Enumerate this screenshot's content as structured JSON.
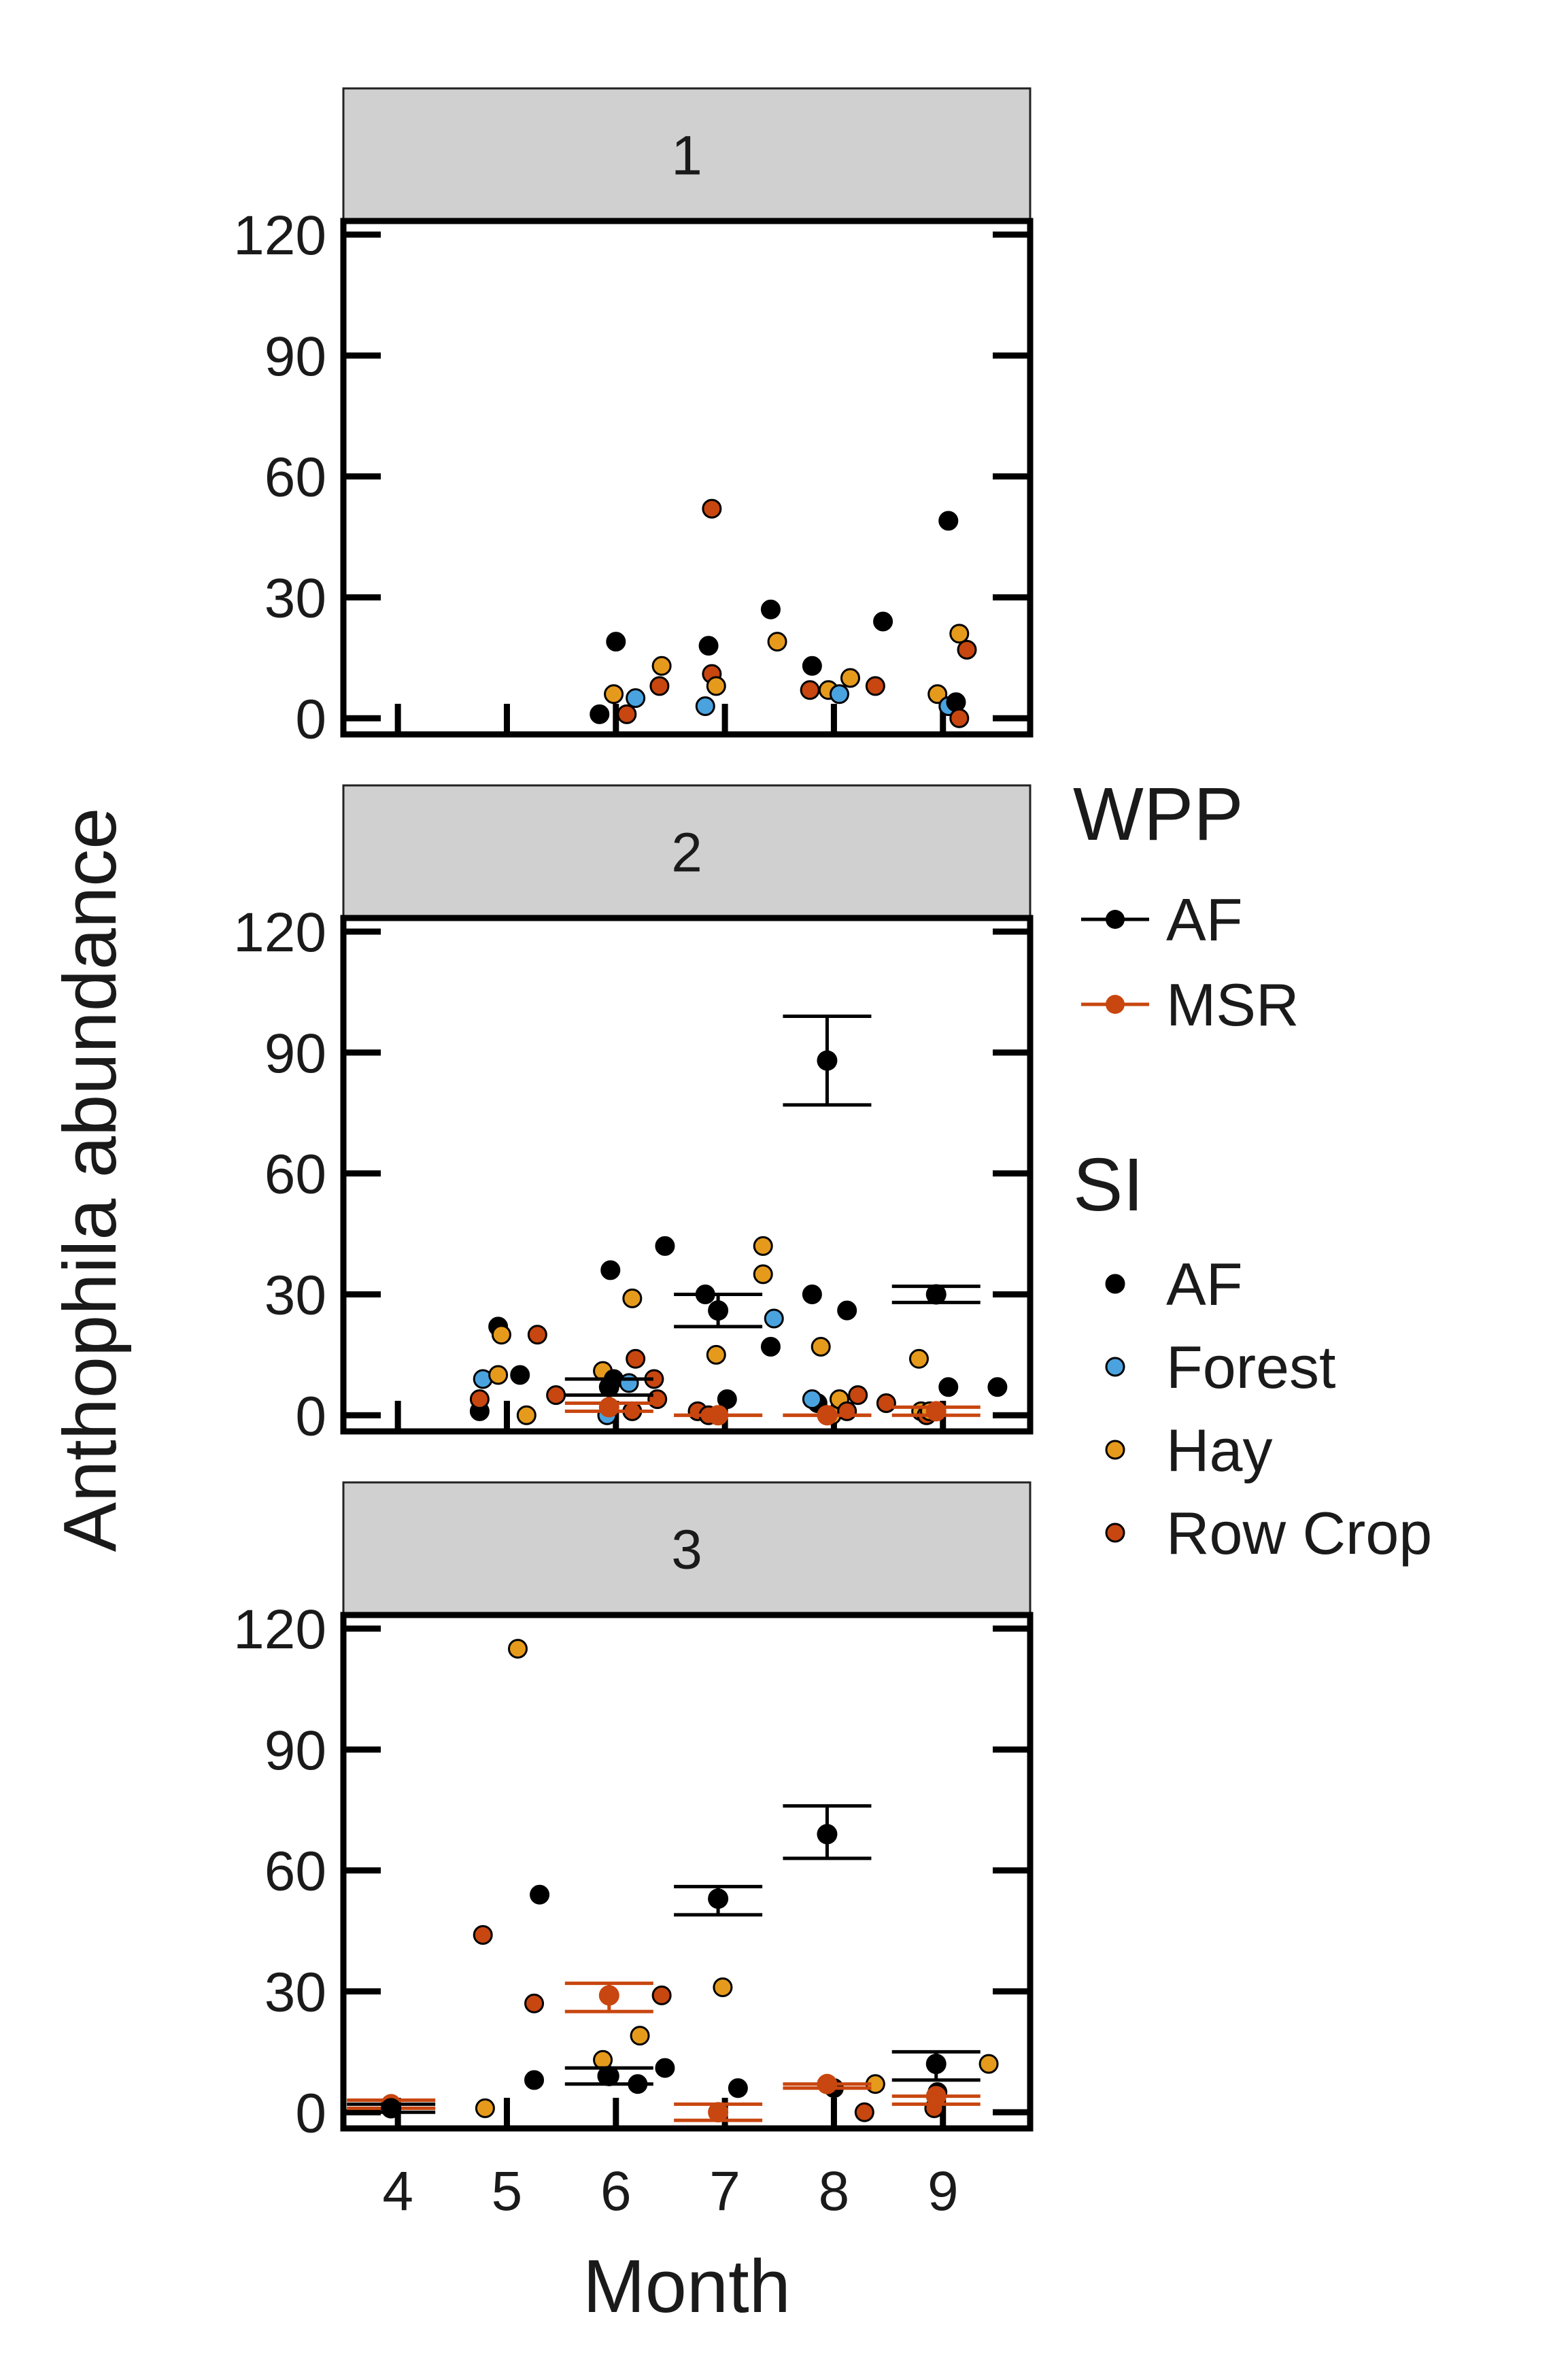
{
  "chart_data": {
    "type": "scatter",
    "xlabel": "Month",
    "ylabel": "Anthophila abundance",
    "x_ticks": [
      4,
      5,
      6,
      7,
      8,
      9
    ],
    "y_ticks": [
      0,
      30,
      60,
      90,
      120
    ],
    "ylim": [
      -4,
      120
    ],
    "facets": [
      "1",
      "2",
      "3"
    ],
    "legend": {
      "wpp_title": "WPP",
      "wpp": [
        {
          "label": "AF",
          "color": "#000000"
        },
        {
          "label": "MSR",
          "color": "#c8460f"
        }
      ],
      "si_title": "SI",
      "si": [
        {
          "label": "AF",
          "color": "#000000"
        },
        {
          "label": "Forest",
          "color": "#4aa3df"
        },
        {
          "label": "Hay",
          "color": "#e69a1c"
        },
        {
          "label": "Row Crop",
          "color": "#c8460f"
        }
      ],
      "placement": "right"
    },
    "si_colors": {
      "AF": "#000000",
      "Forest": "#4aa3df",
      "Hay": "#e69a1c",
      "Row Crop": "#c8460f"
    },
    "wpp_colors": {
      "AF": "#000000",
      "MSR": "#c8460f"
    },
    "panels": [
      {
        "strip": "1",
        "points": [
          {
            "month": 5.85,
            "y": 1,
            "si": "AF"
          },
          {
            "month": 6.0,
            "y": 19,
            "si": "AF"
          },
          {
            "month": 5.98,
            "y": 6,
            "si": "Hay"
          },
          {
            "month": 6.18,
            "y": 5,
            "si": "Forest"
          },
          {
            "month": 6.1,
            "y": 1,
            "si": "Row Crop"
          },
          {
            "month": 6.42,
            "y": 13,
            "si": "Hay"
          },
          {
            "month": 6.4,
            "y": 8,
            "si": "Row Crop"
          },
          {
            "month": 6.88,
            "y": 52,
            "si": "Row Crop"
          },
          {
            "month": 6.85,
            "y": 18,
            "si": "AF"
          },
          {
            "month": 6.88,
            "y": 11,
            "si": "Row Crop"
          },
          {
            "month": 6.92,
            "y": 8,
            "si": "Hay"
          },
          {
            "month": 6.82,
            "y": 3,
            "si": "Forest"
          },
          {
            "month": 7.42,
            "y": 27,
            "si": "AF"
          },
          {
            "month": 7.48,
            "y": 19,
            "si": "Hay"
          },
          {
            "month": 7.8,
            "y": 13,
            "si": "AF"
          },
          {
            "month": 7.78,
            "y": 7,
            "si": "Row Crop"
          },
          {
            "month": 7.95,
            "y": 7,
            "si": "Hay"
          },
          {
            "month": 8.05,
            "y": 6,
            "si": "Forest"
          },
          {
            "month": 8.15,
            "y": 10,
            "si": "Hay"
          },
          {
            "month": 8.38,
            "y": 8,
            "si": "Row Crop"
          },
          {
            "month": 8.45,
            "y": 24,
            "si": "AF"
          },
          {
            "month": 8.95,
            "y": 6,
            "si": "Hay"
          },
          {
            "month": 9.05,
            "y": 49,
            "si": "AF"
          },
          {
            "month": 9.05,
            "y": 3,
            "si": "Forest"
          },
          {
            "month": 9.12,
            "y": 4,
            "si": "AF"
          },
          {
            "month": 9.15,
            "y": 21,
            "si": "Hay"
          },
          {
            "month": 9.22,
            "y": 17,
            "si": "Row Crop"
          },
          {
            "month": 9.15,
            "y": 0,
            "si": "Row Crop"
          }
        ],
        "means": []
      },
      {
        "strip": "2",
        "points": [
          {
            "month": 4.75,
            "y": 1,
            "si": "AF"
          },
          {
            "month": 4.75,
            "y": 4,
            "si": "Row Crop"
          },
          {
            "month": 4.78,
            "y": 9,
            "si": "Forest"
          },
          {
            "month": 4.92,
            "y": 22,
            "si": "AF"
          },
          {
            "month": 4.95,
            "y": 20,
            "si": "Hay"
          },
          {
            "month": 4.92,
            "y": 10,
            "si": "Hay"
          },
          {
            "month": 5.12,
            "y": 10,
            "si": "AF"
          },
          {
            "month": 5.18,
            "y": 0,
            "si": "Hay"
          },
          {
            "month": 5.28,
            "y": 20,
            "si": "Row Crop"
          },
          {
            "month": 5.45,
            "y": 5,
            "si": "Row Crop"
          },
          {
            "month": 5.88,
            "y": 11,
            "si": "Hay"
          },
          {
            "month": 5.92,
            "y": 0,
            "si": "Forest"
          },
          {
            "month": 5.98,
            "y": 9,
            "si": "AF"
          },
          {
            "month": 5.95,
            "y": 36,
            "si": "AF"
          },
          {
            "month": 6.12,
            "y": 8,
            "si": "Forest"
          },
          {
            "month": 6.15,
            "y": 1,
            "si": "Row Crop"
          },
          {
            "month": 6.15,
            "y": 29,
            "si": "Hay"
          },
          {
            "month": 6.18,
            "y": 14,
            "si": "Row Crop"
          },
          {
            "month": 6.35,
            "y": 9,
            "si": "Row Crop"
          },
          {
            "month": 6.38,
            "y": 4,
            "si": "Row Crop"
          },
          {
            "month": 6.45,
            "y": 42,
            "si": "AF"
          },
          {
            "month": 6.75,
            "y": 1,
            "si": "Row Crop"
          },
          {
            "month": 6.82,
            "y": 30,
            "si": "AF"
          },
          {
            "month": 6.85,
            "y": 0,
            "si": "Row Crop"
          },
          {
            "month": 6.92,
            "y": 15,
            "si": "Hay"
          },
          {
            "month": 7.02,
            "y": 4,
            "si": "AF"
          },
          {
            "month": 7.35,
            "y": 42,
            "si": "Hay"
          },
          {
            "month": 7.35,
            "y": 35,
            "si": "Hay"
          },
          {
            "month": 7.42,
            "y": 17,
            "si": "AF"
          },
          {
            "month": 7.45,
            "y": 24,
            "si": "Forest"
          },
          {
            "month": 7.8,
            "y": 30,
            "si": "AF"
          },
          {
            "month": 7.88,
            "y": 17,
            "si": "Hay"
          },
          {
            "month": 7.85,
            "y": 3,
            "si": "AF"
          },
          {
            "month": 7.8,
            "y": 4,
            "si": "Forest"
          },
          {
            "month": 7.98,
            "y": 0,
            "si": "Hay"
          },
          {
            "month": 8.05,
            "y": 4,
            "si": "Hay"
          },
          {
            "month": 8.12,
            "y": 1,
            "si": "Row Crop"
          },
          {
            "month": 8.12,
            "y": 26,
            "si": "AF"
          },
          {
            "month": 8.22,
            "y": 5,
            "si": "Row Crop"
          },
          {
            "month": 8.48,
            "y": 3,
            "si": "Row Crop"
          },
          {
            "month": 8.78,
            "y": 14,
            "si": "Hay"
          },
          {
            "month": 8.8,
            "y": 1,
            "si": "Hay"
          },
          {
            "month": 8.85,
            "y": 0,
            "si": "Row Crop"
          },
          {
            "month": 8.88,
            "y": 1,
            "si": "Hay"
          },
          {
            "month": 9.05,
            "y": 7,
            "si": "AF"
          },
          {
            "month": 9.5,
            "y": 7,
            "si": "AF"
          }
        ],
        "means": [
          {
            "month": 6,
            "wpp": "AF",
            "mean": 7,
            "lo": 5,
            "hi": 9
          },
          {
            "month": 6,
            "wpp": "MSR",
            "mean": 2,
            "lo": 1,
            "hi": 3
          },
          {
            "month": 7,
            "wpp": "AF",
            "mean": 26,
            "lo": 22,
            "hi": 30
          },
          {
            "month": 7,
            "wpp": "MSR",
            "mean": 0,
            "lo": 0,
            "hi": 0
          },
          {
            "month": 8,
            "wpp": "AF",
            "mean": 88,
            "lo": 77,
            "hi": 99
          },
          {
            "month": 8,
            "wpp": "MSR",
            "mean": 0,
            "lo": 0,
            "hi": 0
          },
          {
            "month": 9,
            "wpp": "AF",
            "mean": 30,
            "lo": 28,
            "hi": 32
          },
          {
            "month": 9,
            "wpp": "MSR",
            "mean": 1,
            "lo": 0,
            "hi": 2
          }
        ]
      },
      {
        "strip": "3",
        "points": [
          {
            "month": 4.78,
            "y": 44,
            "si": "Row Crop"
          },
          {
            "month": 4.8,
            "y": 1,
            "si": "Hay"
          },
          {
            "month": 5.1,
            "y": 115,
            "si": "Hay"
          },
          {
            "month": 5.25,
            "y": 27,
            "si": "Row Crop"
          },
          {
            "month": 5.25,
            "y": 8,
            "si": "AF"
          },
          {
            "month": 5.3,
            "y": 54,
            "si": "AF"
          },
          {
            "month": 5.88,
            "y": 13,
            "si": "Hay"
          },
          {
            "month": 5.92,
            "y": 9,
            "si": "AF"
          },
          {
            "month": 6.2,
            "y": 7,
            "si": "AF"
          },
          {
            "month": 6.22,
            "y": 19,
            "si": "Hay"
          },
          {
            "month": 6.42,
            "y": 29,
            "si": "Row Crop"
          },
          {
            "month": 6.45,
            "y": 11,
            "si": "AF"
          },
          {
            "month": 6.98,
            "y": 31,
            "si": "Hay"
          },
          {
            "month": 7.12,
            "y": 6,
            "si": "AF"
          },
          {
            "month": 8.0,
            "y": 6,
            "si": "AF"
          },
          {
            "month": 8.28,
            "y": 0,
            "si": "Row Crop"
          },
          {
            "month": 8.38,
            "y": 7,
            "si": "Hay"
          },
          {
            "month": 8.92,
            "y": 1,
            "si": "Row Crop"
          },
          {
            "month": 8.95,
            "y": 5,
            "si": "AF"
          },
          {
            "month": 9.42,
            "y": 12,
            "si": "Hay"
          }
        ],
        "means": [
          {
            "month": 4,
            "wpp": "MSR",
            "mean": 2,
            "lo": 1,
            "hi": 3
          },
          {
            "month": 4,
            "wpp": "AF",
            "mean": 1,
            "lo": 0,
            "hi": 2
          },
          {
            "month": 6,
            "wpp": "MSR",
            "mean": 29,
            "lo": 25,
            "hi": 32
          },
          {
            "month": 6,
            "wpp": "AF",
            "mean": 9,
            "lo": 7,
            "hi": 11
          },
          {
            "month": 7,
            "wpp": "AF",
            "mean": 53,
            "lo": 49,
            "hi": 56
          },
          {
            "month": 7,
            "wpp": "MSR",
            "mean": 0,
            "lo": -2,
            "hi": 2
          },
          {
            "month": 8,
            "wpp": "AF",
            "mean": 69,
            "lo": 63,
            "hi": 76
          },
          {
            "month": 8,
            "wpp": "MSR",
            "mean": 7,
            "lo": 6,
            "hi": 7
          },
          {
            "month": 9,
            "wpp": "AF",
            "mean": 12,
            "lo": 8,
            "hi": 15
          },
          {
            "month": 9,
            "wpp": "MSR",
            "mean": 4,
            "lo": 2,
            "hi": 4
          }
        ]
      }
    ]
  }
}
